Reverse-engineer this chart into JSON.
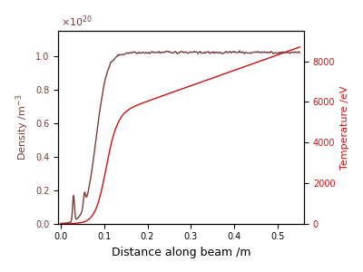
{
  "xlabel": "Distance along beam /m",
  "ylabel_left": "Density /m$^{-3}$",
  "ylabel_right": "Temperature /eV",
  "density_color": "#7a3b3b",
  "temperature_color": "#cc1111",
  "xlim": [
    -0.005,
    0.56
  ],
  "ylim_density": [
    0.0,
    1.15
  ],
  "ylim_temperature": [
    0.0,
    9500
  ],
  "yticks_density": [
    0.0,
    0.2,
    0.4,
    0.6,
    0.8,
    1.0
  ],
  "yticks_temperature": [
    0,
    2000,
    4000,
    6000,
    8000
  ],
  "xticks": [
    0.0,
    0.1,
    0.2,
    0.3,
    0.4,
    0.5
  ],
  "density_exponent_text": "$\\times10^{20}$"
}
